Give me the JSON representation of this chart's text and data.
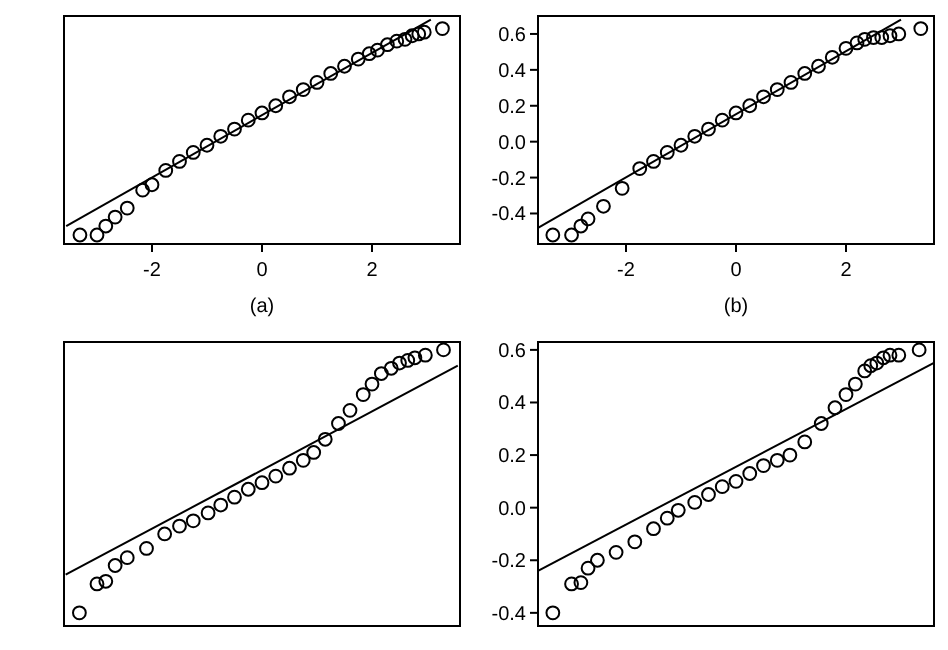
{
  "chart_data": [
    {
      "type": "scatter",
      "xlabel": "(a)",
      "xlim": [
        -3.6,
        3.6
      ],
      "ylim": [
        -0.57,
        0.7
      ],
      "xticks": [
        -2,
        0,
        2
      ],
      "tick_labels": "x",
      "series": [
        {
          "marker": "circle",
          "color": "#000000",
          "x": [
            -3.31,
            -3.0,
            -2.84,
            -2.67,
            -2.45,
            -2.17,
            -2,
            -1.75,
            -1.5,
            -1.25,
            -1,
            -0.75,
            -0.5,
            -0.25,
            0,
            0.25,
            0.5,
            0.75,
            1,
            1.25,
            1.5,
            1.75,
            1.95,
            2.1,
            2.28,
            2.45,
            2.6,
            2.73,
            2.85,
            2.95,
            3.28
          ],
          "values": [
            -0.52,
            -0.52,
            -0.47,
            -0.42,
            -0.37,
            -0.27,
            -0.24,
            -0.16,
            -0.11,
            -0.06,
            -0.02,
            0.03,
            0.07,
            0.12,
            0.16,
            0.2,
            0.25,
            0.29,
            0.33,
            0.38,
            0.42,
            0.46,
            0.49,
            0.51,
            0.54,
            0.56,
            0.57,
            0.59,
            0.6,
            0.61,
            0.63
          ]
        },
        {
          "type": "line",
          "marker": "none",
          "color": "#000000",
          "x": [
            -3.56,
            3.07
          ],
          "values": [
            -0.47,
            0.68
          ]
        }
      ]
    },
    {
      "type": "scatter",
      "xlabel": "(b)",
      "xlim": [
        -3.6,
        3.6
      ],
      "ylim": [
        -0.57,
        0.7
      ],
      "xticks": [
        -2,
        0,
        2
      ],
      "yticks": [
        -0.4,
        -0.2,
        {
          "value": 0,
          "label": "0.0"
        },
        0.2,
        0.4,
        0.6
      ],
      "series": [
        {
          "marker": "circle",
          "color": "#000000",
          "x": [
            -3.33,
            -2.99,
            -2.82,
            -2.69,
            -2.41,
            -2.07,
            -1.75,
            -1.5,
            -1.25,
            -1,
            -0.75,
            -0.5,
            -0.25,
            0,
            0.25,
            0.5,
            0.75,
            1,
            1.25,
            1.5,
            1.75,
            2,
            2.2,
            2.34,
            2.5,
            2.65,
            2.8,
            2.96,
            3.36
          ],
          "values": [
            -0.52,
            -0.52,
            -0.47,
            -0.43,
            -0.36,
            -0.26,
            -0.15,
            -0.11,
            -0.06,
            -0.02,
            0.03,
            0.07,
            0.12,
            0.16,
            0.2,
            0.25,
            0.29,
            0.33,
            0.38,
            0.42,
            0.47,
            0.52,
            0.55,
            0.57,
            0.58,
            0.58,
            0.59,
            0.6,
            0.63
          ]
        },
        {
          "type": "line",
          "marker": "none",
          "color": "#000000",
          "x": [
            -3.6,
            3.0
          ],
          "values": [
            -0.48,
            0.68
          ]
        }
      ]
    },
    {
      "type": "scatter",
      "xlim": [
        -3.6,
        3.6
      ],
      "ylim": [
        -0.45,
        0.63
      ],
      "tick_labels": false,
      "series": [
        {
          "marker": "circle",
          "color": "#000000",
          "x": [
            -3.32,
            -3.0,
            -2.84,
            -2.67,
            -2.45,
            -2.1,
            -1.77,
            -1.5,
            -1.25,
            -0.98,
            -0.75,
            -0.5,
            -0.25,
            0,
            0.25,
            0.5,
            0.75,
            0.94,
            1.15,
            1.39,
            1.6,
            1.84,
            2.0,
            2.17,
            2.35,
            2.5,
            2.65,
            2.78,
            2.97,
            3.3
          ],
          "values": [
            -0.4,
            -0.29,
            -0.28,
            -0.22,
            -0.19,
            -0.155,
            -0.1,
            -0.07,
            -0.05,
            -0.02,
            0.01,
            0.04,
            0.07,
            0.095,
            0.12,
            0.15,
            0.18,
            0.21,
            0.26,
            0.32,
            0.37,
            0.43,
            0.47,
            0.51,
            0.53,
            0.55,
            0.56,
            0.57,
            0.58,
            0.6
          ]
        },
        {
          "type": "line",
          "marker": "none",
          "color": "#000000",
          "x": [
            -3.57,
            3.56
          ],
          "values": [
            -0.255,
            0.54
          ]
        }
      ]
    },
    {
      "type": "scatter",
      "xlim": [
        -3.6,
        3.6
      ],
      "ylim": [
        -0.45,
        0.63
      ],
      "yticks": [
        -0.4,
        -0.2,
        {
          "value": 0,
          "label": "0.0"
        },
        0.2,
        0.4,
        0.6
      ],
      "tick_labels": "y",
      "series": [
        {
          "marker": "circle",
          "color": "#000000",
          "x": [
            -3.33,
            -2.99,
            -2.82,
            -2.69,
            -2.52,
            -2.18,
            -1.84,
            -1.5,
            -1.25,
            -1.05,
            -0.75,
            -0.5,
            -0.25,
            0,
            0.25,
            0.5,
            0.75,
            0.98,
            1.25,
            1.55,
            1.8,
            2.0,
            2.17,
            2.34,
            2.45,
            2.56,
            2.68,
            2.8,
            2.96,
            3.33
          ],
          "values": [
            -0.4,
            -0.29,
            -0.285,
            -0.23,
            -0.2,
            -0.17,
            -0.13,
            -0.08,
            -0.04,
            -0.01,
            0.02,
            0.05,
            0.08,
            0.1,
            0.13,
            0.16,
            0.18,
            0.2,
            0.25,
            0.32,
            0.38,
            0.43,
            0.47,
            0.52,
            0.54,
            0.55,
            0.57,
            0.58,
            0.58,
            0.6
          ]
        },
        {
          "type": "line",
          "marker": "none",
          "color": "#000000",
          "x": [
            -3.6,
            3.59
          ],
          "values": [
            -0.24,
            0.55
          ]
        }
      ]
    }
  ]
}
